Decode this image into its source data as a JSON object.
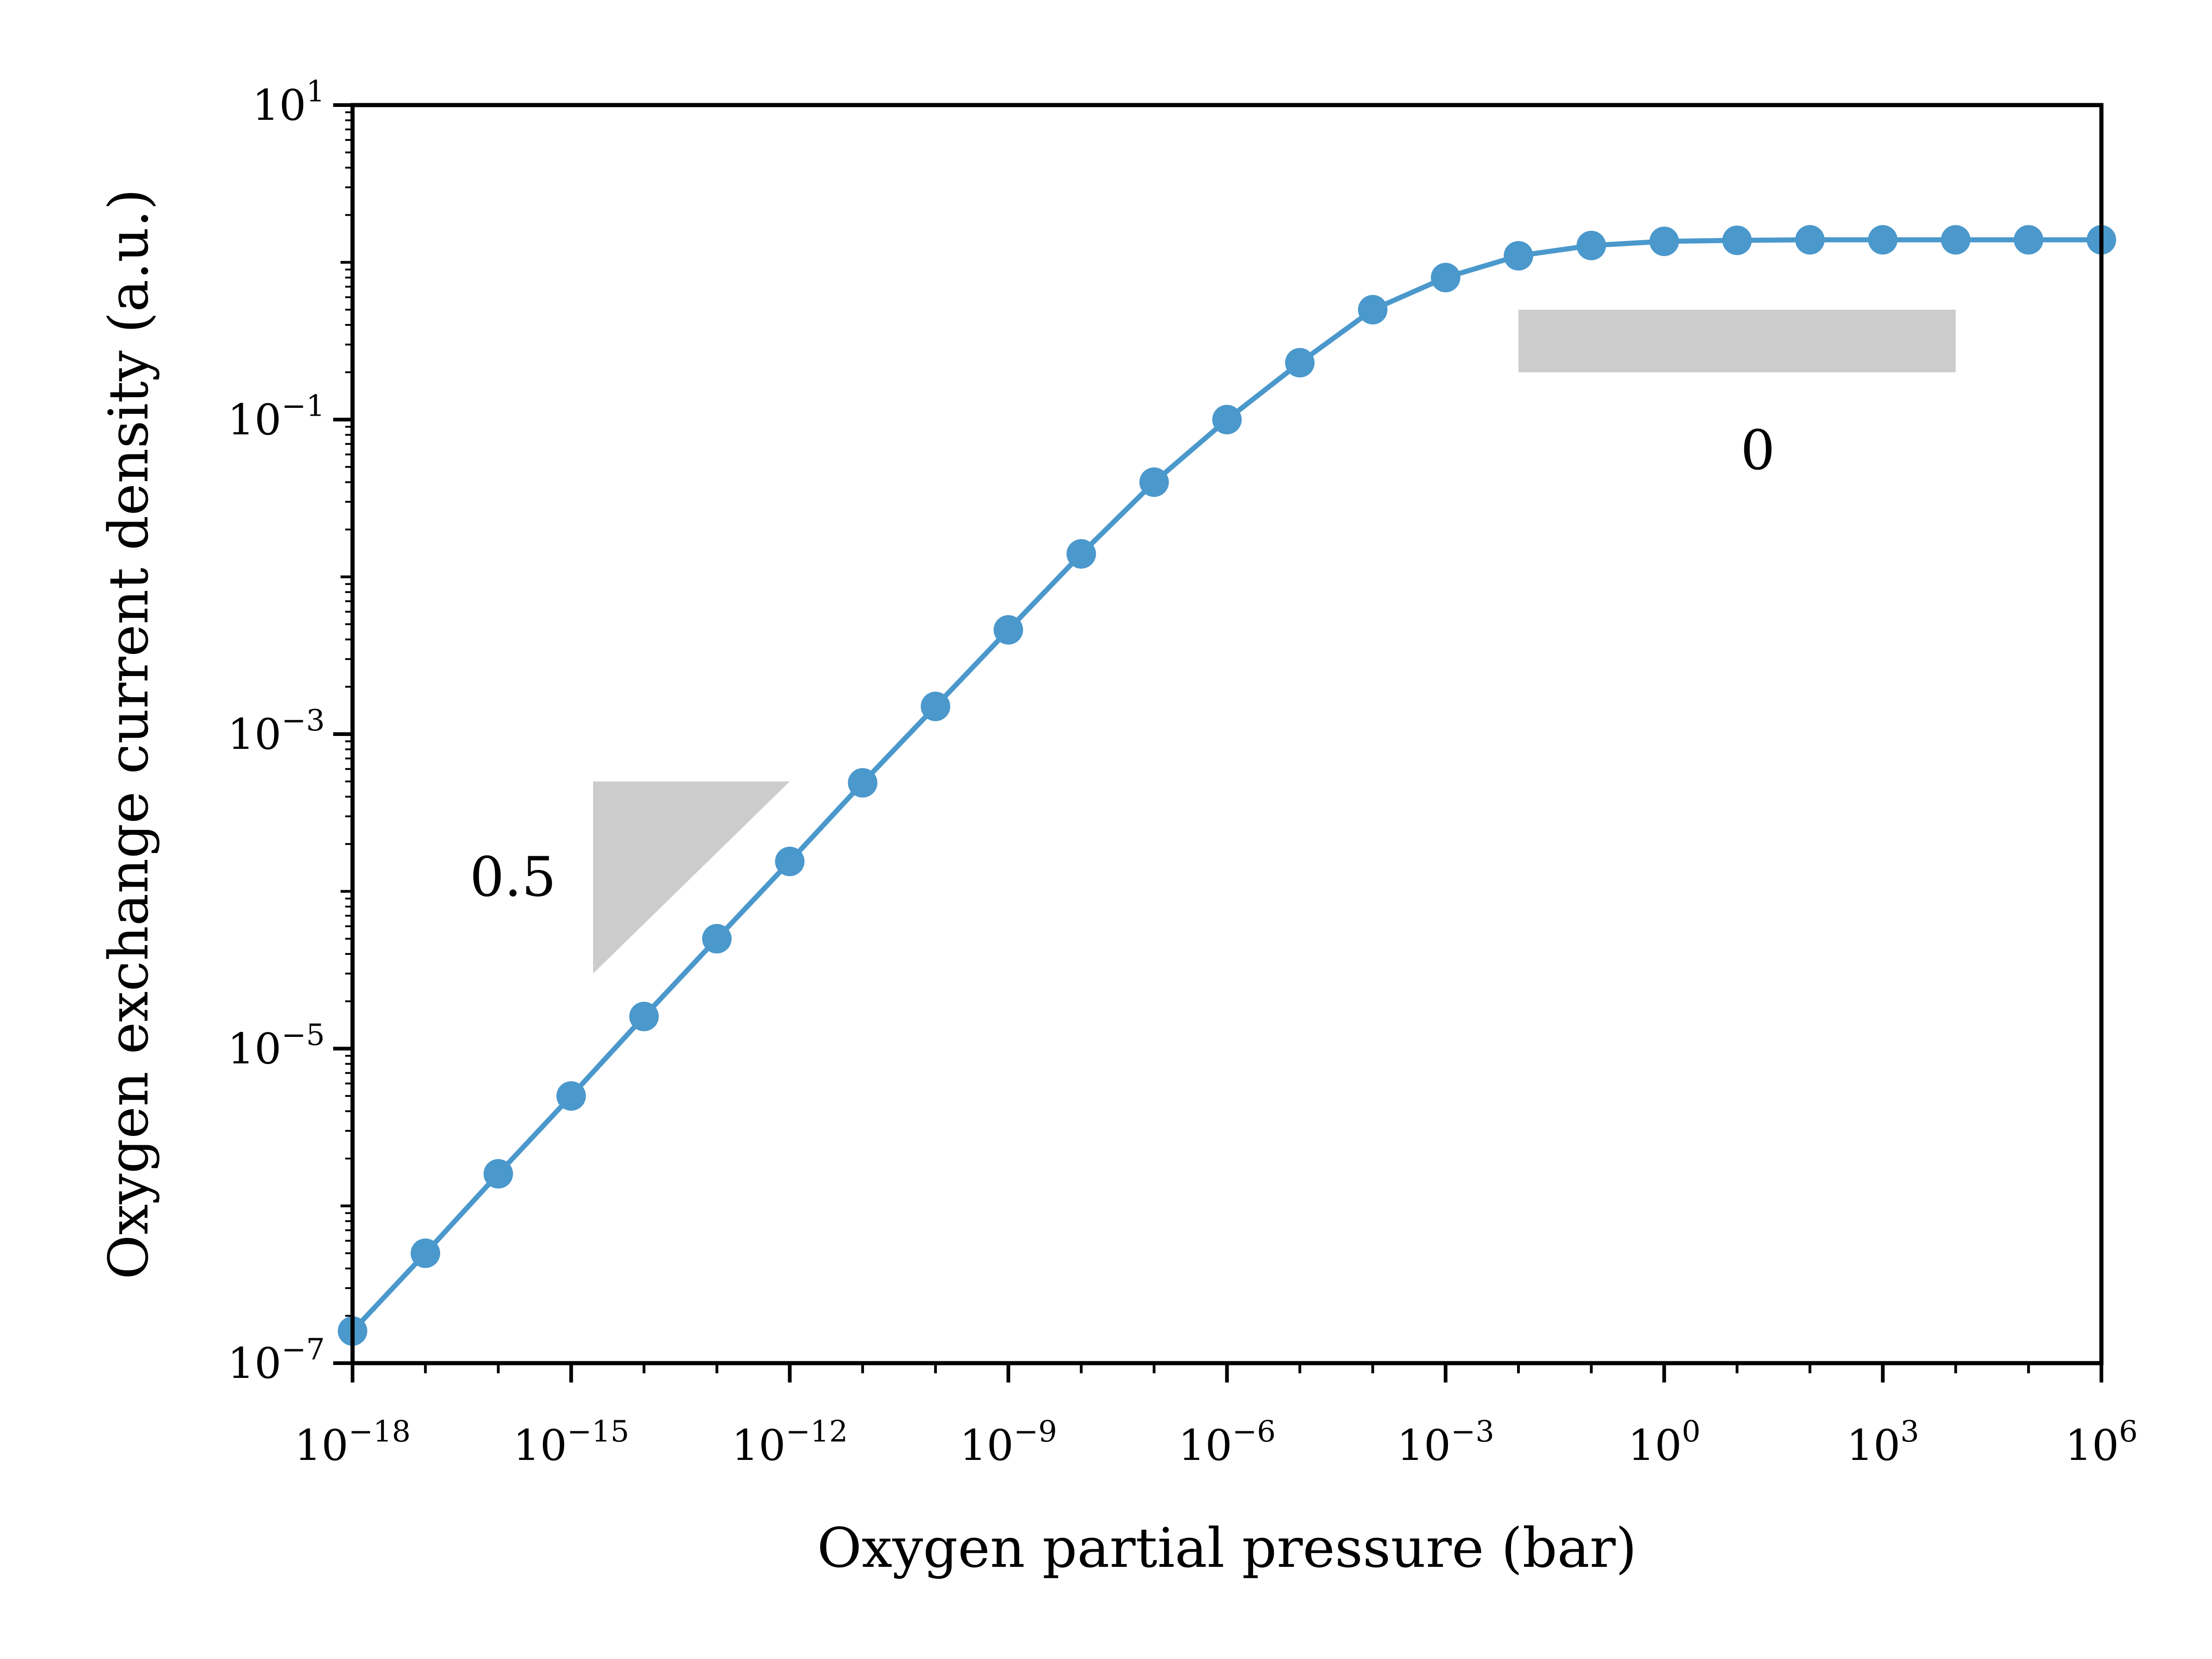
{
  "chart_data": {
    "type": "line",
    "xlabel": "Oxygen partial pressure (bar)",
    "ylabel": "Oxygen exchange current density (a.u.)",
    "xscale": "log",
    "yscale": "log",
    "xlim": [
      1e-18,
      1000000.0
    ],
    "ylim": [
      1e-07,
      10
    ],
    "grid": false,
    "x_ticks": [
      {
        "mantissa": "10",
        "exponent": "−18"
      },
      {
        "mantissa": "10",
        "exponent": "−15"
      },
      {
        "mantissa": "10",
        "exponent": "−12"
      },
      {
        "mantissa": "10",
        "exponent": "−9"
      },
      {
        "mantissa": "10",
        "exponent": "−6"
      },
      {
        "mantissa": "10",
        "exponent": "−3"
      },
      {
        "mantissa": "10",
        "exponent": "0"
      },
      {
        "mantissa": "10",
        "exponent": "3"
      },
      {
        "mantissa": "10",
        "exponent": "6"
      }
    ],
    "y_ticks": [
      {
        "mantissa": "10",
        "exponent": "−7"
      },
      {
        "mantissa": "10",
        "exponent": "−5"
      },
      {
        "mantissa": "10",
        "exponent": "−3"
      },
      {
        "mantissa": "10",
        "exponent": "−1"
      },
      {
        "mantissa": "10",
        "exponent": "1"
      }
    ],
    "series": [
      {
        "color": "#4a98cc",
        "x": [
          1e-18,
          1e-17,
          1e-16,
          1e-15,
          1e-14,
          1e-13,
          1e-12,
          1e-11,
          1e-10,
          1e-09,
          1e-08,
          1e-07,
          1e-06,
          1e-05,
          0.0001,
          0.001,
          0.01,
          0.1,
          1,
          10,
          100,
          1000,
          10000,
          100000,
          1000000
        ],
        "y": [
          1.6e-07,
          5e-07,
          1.6e-06,
          5e-06,
          1.6e-05,
          5e-05,
          0.000155,
          0.00049,
          0.0015,
          0.0046,
          0.014,
          0.04,
          0.1,
          0.23,
          0.5,
          0.8,
          1.1,
          1.28,
          1.36,
          1.38,
          1.39,
          1.39,
          1.39,
          1.39,
          1.39
        ]
      }
    ],
    "annotations": [
      {
        "kind": "slope-triangle",
        "label": "0.5",
        "color": "#cccccc",
        "x_range": [
          2e-15,
          1e-12
        ],
        "y_range": [
          3e-05,
          0.0005
        ]
      },
      {
        "kind": "slope-bar",
        "label": "0",
        "color": "#cccccc",
        "x_range": [
          0.01,
          10000.0
        ],
        "y_range": [
          0.2,
          0.5
        ]
      }
    ]
  }
}
